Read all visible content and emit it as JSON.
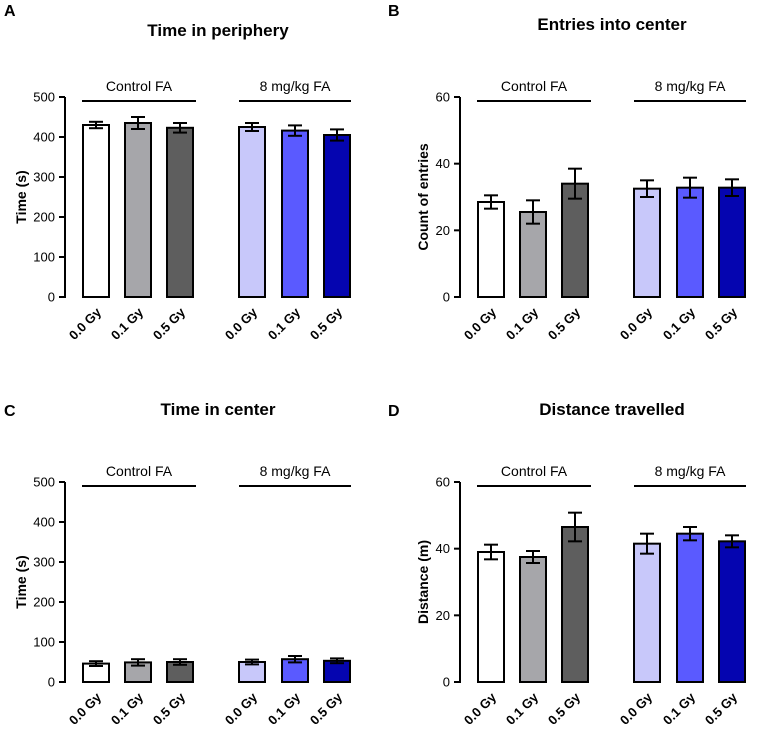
{
  "chart_data": [
    {
      "panel": "A",
      "type": "bar",
      "title": "Time in periphery",
      "ylabel": "Time (s)",
      "xlabel": "",
      "ylim": [
        0,
        500
      ],
      "yticks": [
        "0",
        "100",
        "200",
        "300",
        "400",
        "500"
      ],
      "groups": [
        "Control FA",
        "8 mg/kg FA"
      ],
      "categories": [
        "0.0 Gy",
        "0.1 Gy",
        "0.5 Gy",
        "0.0 Gy",
        "0.1 Gy",
        "0.5 Gy"
      ],
      "values": [
        430,
        435,
        423,
        425,
        416,
        405
      ],
      "errors": [
        8,
        15,
        12,
        10,
        13,
        14
      ],
      "colors": [
        "#ffffff",
        "#a6a6aa",
        "#5e5e5e",
        "#c8c8fa",
        "#5a5aff",
        "#0505b0"
      ]
    },
    {
      "panel": "B",
      "type": "bar",
      "title": "Entries into center",
      "ylabel": "Count of entries",
      "xlabel": "",
      "ylim": [
        0,
        60
      ],
      "yticks": [
        "0",
        "20",
        "40",
        "60"
      ],
      "groups": [
        "Control FA",
        "8 mg/kg FA"
      ],
      "categories": [
        "0.0 Gy",
        "0.1 Gy",
        "0.5 Gy",
        "0.0 Gy",
        "0.1 Gy",
        "0.5 Gy"
      ],
      "values": [
        28.5,
        25.5,
        34,
        32.5,
        32.8,
        32.8
      ],
      "errors": [
        2,
        3.5,
        4.5,
        2.5,
        3,
        2.5
      ],
      "colors": [
        "#ffffff",
        "#a6a6aa",
        "#5e5e5e",
        "#c8c8fa",
        "#5a5aff",
        "#0505b0"
      ]
    },
    {
      "panel": "C",
      "type": "bar",
      "title": "Time in center",
      "ylabel": "Time (s)",
      "xlabel": "",
      "ylim": [
        0,
        500
      ],
      "yticks": [
        "0",
        "100",
        "200",
        "300",
        "400",
        "500"
      ],
      "groups": [
        "Control FA",
        "8 mg/kg FA"
      ],
      "categories": [
        "0.0 Gy",
        "0.1 Gy",
        "0.5 Gy",
        "0.0 Gy",
        "0.1 Gy",
        "0.5 Gy"
      ],
      "values": [
        46,
        49,
        50,
        50,
        57,
        53
      ],
      "errors": [
        6,
        8,
        7,
        6,
        8,
        6
      ],
      "colors": [
        "#ffffff",
        "#a6a6aa",
        "#5e5e5e",
        "#c8c8fa",
        "#5a5aff",
        "#0505b0"
      ]
    },
    {
      "panel": "D",
      "type": "bar",
      "title": "Distance travelled",
      "ylabel": "Distance (m)",
      "xlabel": "",
      "ylim": [
        0,
        60
      ],
      "yticks": [
        "0",
        "20",
        "40",
        "60"
      ],
      "groups": [
        "Control FA",
        "8 mg/kg FA"
      ],
      "categories": [
        "0.0 Gy",
        "0.1 Gy",
        "0.5 Gy",
        "0.0 Gy",
        "0.1 Gy",
        "0.5 Gy"
      ],
      "values": [
        39,
        37.5,
        46.5,
        41.5,
        44.5,
        42.2
      ],
      "errors": [
        2.2,
        1.8,
        4.3,
        3,
        2,
        1.8
      ],
      "colors": [
        "#ffffff",
        "#a6a6aa",
        "#5e5e5e",
        "#c8c8fa",
        "#5a5aff",
        "#0505b0"
      ]
    }
  ]
}
